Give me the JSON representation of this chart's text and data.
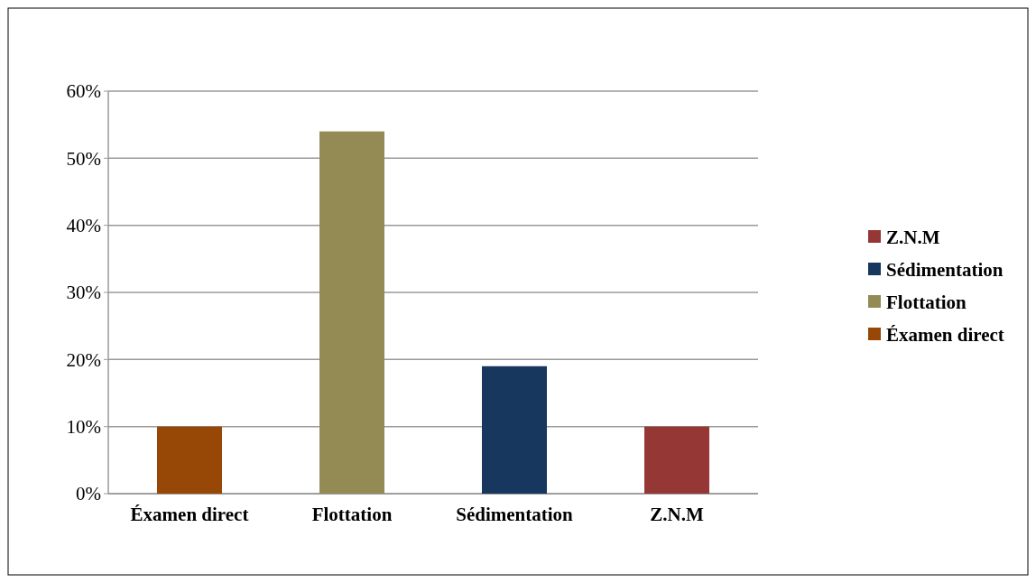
{
  "chart_data": {
    "type": "bar",
    "categories": [
      "Éxamen direct",
      "Flottation",
      "Sédimentation",
      "Z.N.M"
    ],
    "stacked": true,
    "series": [
      {
        "name": "Éxamen direct",
        "color": "#974706",
        "values": [
          10,
          null,
          null,
          null
        ]
      },
      {
        "name": "Flottation",
        "color": "#948a54",
        "values": [
          null,
          54,
          null,
          null
        ]
      },
      {
        "name": "Sédimentation",
        "color": "#17375e",
        "values": [
          null,
          null,
          19,
          null
        ]
      },
      {
        "name": "Z.N.M",
        "color": "#953735",
        "values": [
          null,
          null,
          null,
          10
        ]
      }
    ],
    "ylim": [
      0,
      60
    ],
    "yticks": [
      {
        "value": 0,
        "label": "0%"
      },
      {
        "value": 10,
        "label": "10%"
      },
      {
        "value": 20,
        "label": "20%"
      },
      {
        "value": 30,
        "label": "30%"
      },
      {
        "value": 40,
        "label": "40%"
      },
      {
        "value": 50,
        "label": "50%"
      },
      {
        "value": 60,
        "label": "60%"
      }
    ],
    "grid": "y",
    "legend": "right"
  }
}
